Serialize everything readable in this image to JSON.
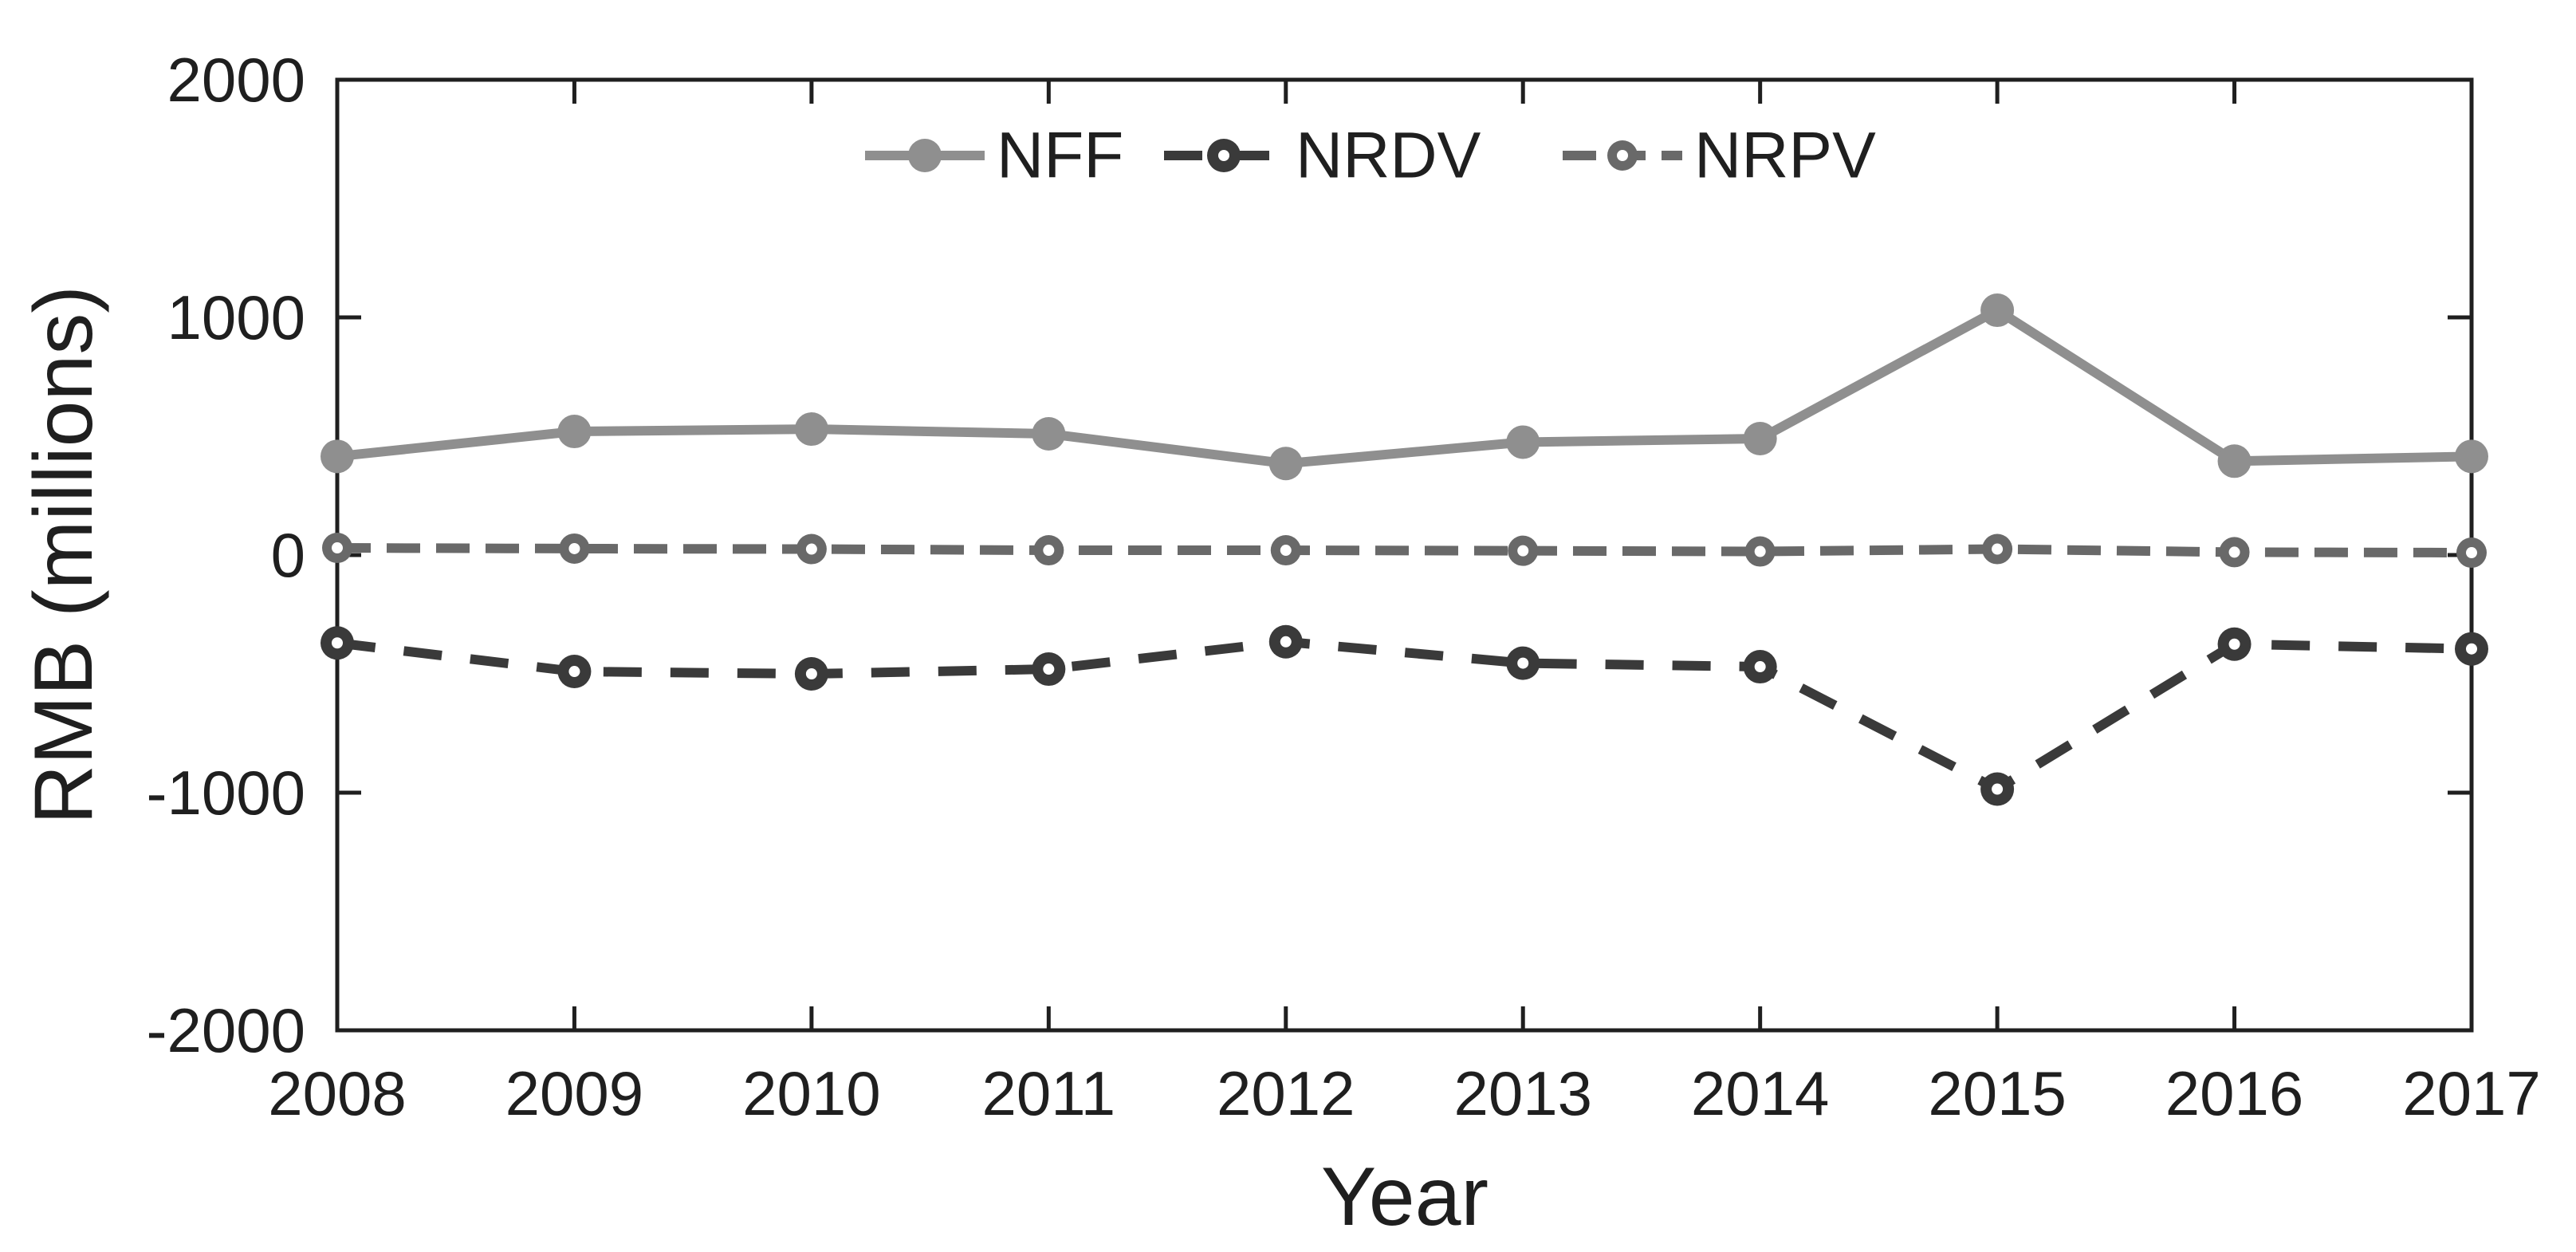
{
  "chart_data": {
    "type": "line",
    "title": "",
    "xlabel": "Year",
    "ylabel": "RMB (millions)",
    "categories": [
      "2008",
      "2009",
      "2010",
      "2011",
      "2012",
      "2013",
      "2014",
      "2015",
      "2016",
      "2017"
    ],
    "ylim": [
      -2000,
      2000
    ],
    "yticks": [
      2000,
      1000,
      0,
      -1000,
      -2000
    ],
    "grid": false,
    "legend_position": "top-center-inside",
    "axis_color": "#1f1f1f",
    "background": "#ffffff",
    "series": [
      {
        "name": "NFF",
        "color": "#8f8f8f",
        "line_style": "solid",
        "marker": "circle",
        "values": [
          415,
          520,
          530,
          510,
          385,
          475,
          490,
          1030,
          395,
          415
        ]
      },
      {
        "name": "NRDV",
        "color": "#3a3a3a",
        "line_style": "long-dash",
        "marker": "circle-dot",
        "values": [
          -370,
          -490,
          -500,
          -480,
          -365,
          -455,
          -470,
          -985,
          -375,
          -395
        ]
      },
      {
        "name": "NRPV",
        "color": "#696969",
        "line_style": "dash",
        "marker": "circle-dot",
        "values": [
          30,
          27,
          25,
          20,
          20,
          18,
          15,
          25,
          12,
          10
        ]
      }
    ]
  }
}
